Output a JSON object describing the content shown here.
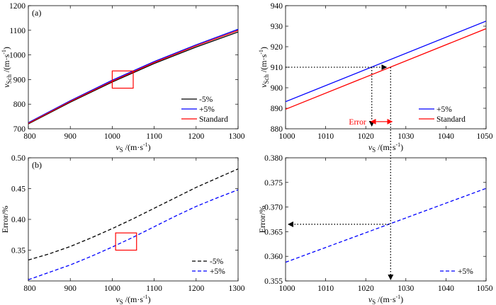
{
  "colors": {
    "black": "#000000",
    "blue": "#0000ff",
    "red": "#ff0000"
  },
  "chart_data": [
    {
      "id": "a",
      "type": "line",
      "panel_label": "(a)",
      "xlabel": "vS /(m·s⁻¹)",
      "ylabel": "vSch /(m·s⁻¹)",
      "xlim": [
        800,
        1300
      ],
      "ylim": [
        700,
        1200
      ],
      "xticks": [
        800,
        900,
        1000,
        1100,
        1200,
        1300
      ],
      "yticks": [
        700,
        800,
        900,
        1000,
        1100,
        1200
      ],
      "series": [
        {
          "name": "-5%",
          "color": "#000000",
          "dash": "solid",
          "x": [
            800,
            900,
            1000,
            1100,
            1200,
            1300
          ],
          "y": [
            720,
            808,
            890,
            965,
            1032,
            1093
          ]
        },
        {
          "name": "+5%",
          "color": "#0000ff",
          "dash": "solid",
          "x": [
            800,
            900,
            1000,
            1100,
            1200,
            1300
          ],
          "y": [
            725,
            814,
            897,
            973,
            1041,
            1104
          ]
        },
        {
          "name": "Standard",
          "color": "#ff0000",
          "dash": "solid",
          "x": [
            800,
            900,
            1000,
            1100,
            1200,
            1300
          ],
          "y": [
            722,
            811,
            893,
            969,
            1037,
            1099
          ]
        }
      ],
      "legend_position": "bottom-right",
      "annotations": {
        "rect": {
          "x": [
            1000,
            1050
          ],
          "y": [
            865,
            935
          ],
          "color": "#ff0000"
        }
      }
    },
    {
      "id": "a-zoom",
      "type": "line",
      "panel_label": "",
      "xlabel": "vS /(m·s⁻¹)",
      "ylabel": "vSch /(m·s⁻¹)",
      "xlim": [
        1000,
        1050
      ],
      "ylim": [
        880,
        940
      ],
      "xticks": [
        1000,
        1010,
        1020,
        1030,
        1040,
        1050
      ],
      "yticks": [
        880,
        890,
        900,
        910,
        920,
        930,
        940
      ],
      "series": [
        {
          "name": "+5%",
          "color": "#0000ff",
          "dash": "solid",
          "x": [
            1000,
            1050
          ],
          "y": [
            893.2,
            932.5
          ]
        },
        {
          "name": "Standard",
          "color": "#ff0000",
          "dash": "solid",
          "x": [
            1000,
            1050
          ],
          "y": [
            889.5,
            928.8
          ]
        }
      ],
      "legend_position": "bottom-right",
      "annotations": {
        "error_label": "Error",
        "error_x": [
          1021.5,
          1026.2
        ],
        "error_y": 883.5,
        "level_y": 910,
        "x_std": 1026.2,
        "x_plus": 1021.5
      }
    },
    {
      "id": "b",
      "type": "line",
      "panel_label": "(b)",
      "xlabel": "vS /(m·s⁻¹)",
      "ylabel": "Error/%",
      "xlim": [
        800,
        1300
      ],
      "ylim": [
        0.3,
        0.5
      ],
      "xticks": [
        800,
        900,
        1000,
        1100,
        1200,
        1300
      ],
      "yticks": [
        "0.35",
        "0.40",
        "0.45",
        "0.50"
      ],
      "series": [
        {
          "name": "-5%",
          "color": "#000000",
          "dash": "dashed",
          "x": [
            800,
            850,
            900,
            950,
            1000,
            1050,
            1100,
            1150,
            1200,
            1250,
            1300
          ],
          "y": [
            0.334,
            0.344,
            0.356,
            0.37,
            0.385,
            0.401,
            0.418,
            0.435,
            0.452,
            0.467,
            0.482
          ]
        },
        {
          "name": "+5%",
          "color": "#0000ff",
          "dash": "dashed",
          "x": [
            800,
            850,
            900,
            950,
            1000,
            1050,
            1100,
            1150,
            1200,
            1250,
            1300
          ],
          "y": [
            0.302,
            0.314,
            0.326,
            0.34,
            0.355,
            0.371,
            0.388,
            0.405,
            0.421,
            0.435,
            0.448
          ]
        }
      ],
      "legend_position": "bottom-right",
      "annotations": {
        "rect": {
          "x": [
            1008,
            1058
          ],
          "y": [
            0.35,
            0.378
          ],
          "color": "#ff0000"
        }
      }
    },
    {
      "id": "b-zoom",
      "type": "line",
      "panel_label": "",
      "xlabel": "vS /(m·s⁻¹)",
      "ylabel": "Error/%",
      "xlim": [
        1000,
        1050
      ],
      "ylim": [
        0.355,
        0.38
      ],
      "xticks": [
        1000,
        1010,
        1020,
        1030,
        1040,
        1050
      ],
      "yticks": [
        "0.355",
        "0.360",
        "0.365",
        "0.370",
        "0.375",
        "0.380"
      ],
      "series": [
        {
          "name": "+5%",
          "color": "#0000ff",
          "dash": "dashed",
          "x": [
            1000,
            1050
          ],
          "y": [
            0.3588,
            0.3738
          ]
        }
      ],
      "legend_position": "bottom-right",
      "annotations": {
        "level_y": 0.3665,
        "x_point": 1025.8
      }
    }
  ]
}
